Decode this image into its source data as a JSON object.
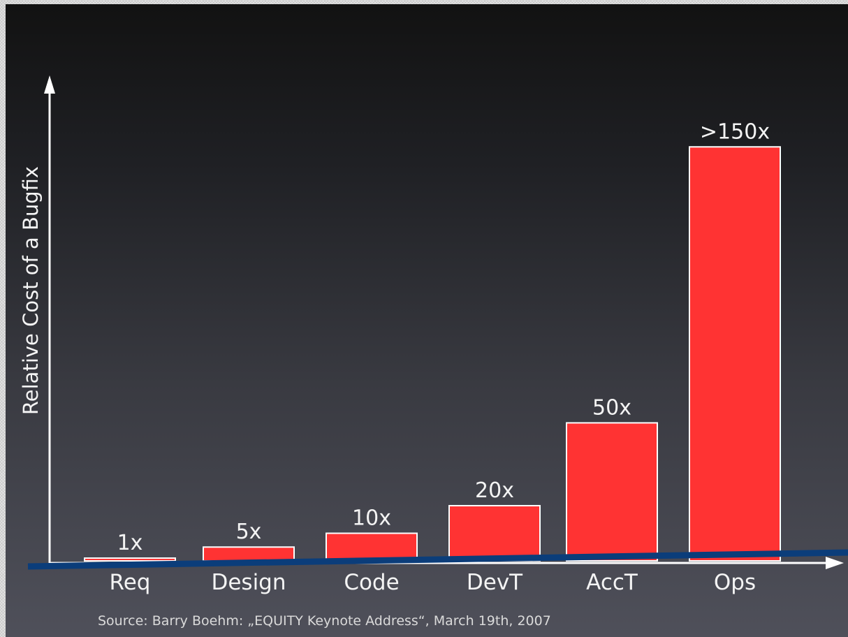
{
  "chart_data": {
    "type": "bar",
    "title": "",
    "ylabel": "Relative Cost of a Bugfix",
    "xlabel": "",
    "categories": [
      "Req",
      "Design",
      "Code",
      "DevT",
      "AccT",
      "Ops"
    ],
    "values": [
      1,
      5,
      10,
      20,
      50,
      150
    ],
    "data_labels": [
      "1x",
      "5x",
      "10x",
      "20x",
      "50x",
      ">150x"
    ],
    "ylim": [
      0,
      165
    ],
    "grid": false,
    "bar_color": "#ff3333",
    "bar_outline_color": "#ffffff",
    "axis_color": "#ffffff",
    "overlay_line_color": "#0b3d7a",
    "source": "Source: Barry Boehm: „EQUITY Keynote Address“, March 19th, 2007"
  }
}
